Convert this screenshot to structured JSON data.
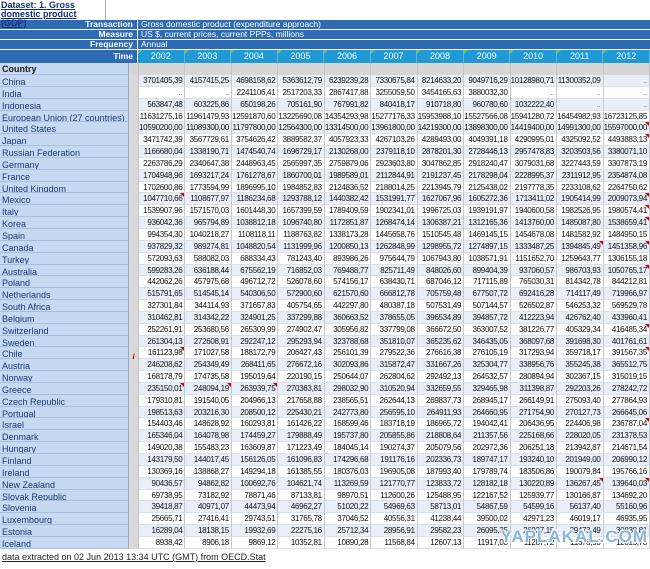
{
  "page": {
    "title": "Dataset: 1. Gross domestic product (GDP)",
    "footer": "data extracted on 02 Jun 2013 13:34 UTC (GMT) from OECD.Stat",
    "watermark": "YAPLAKAL.COM"
  },
  "filters": [
    {
      "label": "Transaction",
      "value": "Gross domestic product (expenditure approach)"
    },
    {
      "label": "Measure",
      "value": "US $, current prices, current PPPs, millions"
    },
    {
      "label": "Frequency",
      "value": "Annual"
    }
  ],
  "time": {
    "label": "Time",
    "years": [
      "2002",
      "2003",
      "2004",
      "2005",
      "2006",
      "2007",
      "2008",
      "2009",
      "2010",
      "2011",
      "2012"
    ]
  },
  "table": {
    "row_dimension": "Country",
    "missing_symbol": "..",
    "rows": [
      {
        "name": "China",
        "info": false,
        "red": [],
        "values": [
          "3701405,39",
          "4157415,25",
          "4698158,62",
          "5363612,79",
          "6239239,28",
          "7330675,84",
          "8214633,20",
          "9049716,29",
          "10128980,71",
          "11300352,09",
          ".."
        ]
      },
      {
        "name": "India",
        "info": false,
        "red": [],
        "values": [
          "..",
          "..",
          "2241106,41",
          "2517203,33",
          "2867417,88",
          "3255059,50",
          "3454165,63",
          "3880032,30",
          "..",
          "..",
          ".."
        ]
      },
      {
        "name": "Indonesia",
        "info": false,
        "red": [],
        "values": [
          "563847,48",
          "603225,86",
          "650198,26",
          "705161,90",
          "767991,82",
          "840418,17",
          "910718,80",
          "960780,60",
          "1032222,40",
          "..",
          ".."
        ]
      },
      {
        "name": "European Union (27 countries)",
        "info": false,
        "red": [],
        "values": [
          "11631275,16",
          "11961479,93",
          "12591870,60",
          "13225690,08",
          "14354293,98",
          "15277176,33",
          "15953988,10",
          "15527566,08",
          "15941280,72",
          "16454982,93",
          "16723125,85"
        ]
      },
      {
        "name": "United States",
        "info": false,
        "red": [
          10
        ],
        "values": [
          "10590200,00",
          "11089300,00",
          "11797800,00",
          "12564300,00",
          "13314500,00",
          "13961800,00",
          "14219300,00",
          "13898300,00",
          "14419400,00",
          "14991300,00",
          "15597000,00"
        ]
      },
      {
        "name": "Japan",
        "info": false,
        "red": [
          10
        ],
        "values": [
          "3471742,39",
          "3567729,61",
          "3754626,42",
          "3889582,37",
          "4057923,33",
          "4267103,26",
          "4289493,00",
          "4049391,18",
          "4290995,01",
          "4325092,52",
          "4493883,13"
        ]
      },
      {
        "name": "Russian Federation",
        "info": false,
        "red": [],
        "values": [
          "1166680,04",
          "1338190,71",
          "1474540,74",
          "1696729,17",
          "2130268,00",
          "2379118,10",
          "2878201,30",
          "2728446,13",
          "2957478,83",
          "3203503,56",
          "3380071,10"
        ]
      },
      {
        "name": "Germany",
        "info": false,
        "red": [],
        "values": [
          "2263786,29",
          "2340647,38",
          "2448963,45",
          "2565997,35",
          "2759879,06",
          "2923603,80",
          "3047862,85",
          "2918240,47",
          "3079031,68",
          "3227443,59",
          "3307873,19"
        ]
      },
      {
        "name": "France",
        "info": false,
        "red": [],
        "values": [
          "1704948,96",
          "1693217,24",
          "1761278,67",
          "1860700,01",
          "1989589,01",
          "2112844,91",
          "2191237,45",
          "2178298,04",
          "2228995,37",
          "2311912,95",
          "2354874,08"
        ]
      },
      {
        "name": "United Kingdom",
        "info": false,
        "red": [],
        "values": [
          "1702600,86",
          "1773594,99",
          "1896995,10",
          "1984852,83",
          "2124836,52",
          "2188014,25",
          "2213945,79",
          "2125438,02",
          "2197778,35",
          "2233108,62",
          "2264750,62"
        ]
      },
      {
        "name": "Mexico",
        "info": false,
        "red": [
          0,
          10
        ],
        "values": [
          "1047710,66",
          "1108677,97",
          "1186234,68",
          "1293788,12",
          "1440382,42",
          "1531991,77",
          "1627067,96",
          "1605272,36",
          "1713411,02",
          "1905414,99",
          "2009073,94"
        ]
      },
      {
        "name": "Italy",
        "info": false,
        "red": [
          10
        ],
        "values": [
          "1539907,96",
          "1571570,03",
          "1601448,30",
          "1657399,59",
          "1789409,59",
          "1902341,01",
          "1996725,03",
          "1939191,97",
          "1940600,58",
          "1982526,95",
          "1980574,41"
        ]
      },
      {
        "name": "Korea",
        "info": false,
        "red": [
          10
        ],
        "values": [
          "936042,36",
          "965794,89",
          "1038812,18",
          "1096740,80",
          "1172851,87",
          "1268474,14",
          "1306387,21",
          "1312165,36",
          "1413760,00",
          "1485087,80",
          "1538659,41"
        ]
      },
      {
        "name": "Spain",
        "info": false,
        "red": [],
        "values": [
          "994354,30",
          "1040218,27",
          "1108118,11",
          "1188763,82",
          "1338173,28",
          "1445658,76",
          "1510545,48",
          "1469145,15",
          "1454678,08",
          "1481582,92",
          "1484950,15"
        ]
      },
      {
        "name": "Canada",
        "info": false,
        "red": [
          9,
          10
        ],
        "values": [
          "937829,32",
          "989274,81",
          "1048820,54",
          "1131999,96",
          "1200850,13",
          "1262848,99",
          "1298955,72",
          "1274897,15",
          "1333487,25",
          "1394845,49",
          "1451358,96"
        ]
      },
      {
        "name": "Turkey",
        "info": false,
        "red": [],
        "values": [
          "572093,63",
          "588082,03",
          "688334,43",
          "781243,40",
          "893986,26",
          "975644,79",
          "1067943,80",
          "1038571,91",
          "1151652,70",
          "1259643,77",
          "1306155,18"
        ]
      },
      {
        "name": "Australia",
        "info": false,
        "red": [
          10
        ],
        "values": [
          "599283,26",
          "636188,44",
          "675562,19",
          "716852,03",
          "769488,77",
          "825711,49",
          "848026,60",
          "899404,39",
          "937060,57",
          "986703,93",
          "1050765,17"
        ]
      },
      {
        "name": "Poland",
        "info": false,
        "red": [],
        "values": [
          "442062,26",
          "457975,68",
          "496712,72",
          "526078,60",
          "574156,17",
          "638430,71",
          "687046,12",
          "717115,89",
          "765030,31",
          "814342,78",
          "844212,81"
        ]
      },
      {
        "name": "Netherlands",
        "info": false,
        "red": [],
        "values": [
          "515791,65",
          "514545,14",
          "540306,50",
          "572900,60",
          "621570,60",
          "666812,78",
          "705759,48",
          "677507,72",
          "692416,28",
          "714117,49",
          "719966,97"
        ]
      },
      {
        "name": "South Africa",
        "info": false,
        "red": [],
        "values": [
          "327301,84",
          "344114,93",
          "371657,83",
          "405754,65",
          "442297,80",
          "480387,18",
          "507531,49",
          "507144,57",
          "526502,87",
          "546253,32",
          "569529,78"
        ]
      },
      {
        "name": "Belgium",
        "info": false,
        "red": [],
        "values": [
          "310462,81",
          "314342,22",
          "324901,25",
          "337299,88",
          "360663,52",
          "378655,05",
          "396534,89",
          "394857,72",
          "412223,94",
          "426762,40",
          "433960,41"
        ]
      },
      {
        "name": "Switzerland",
        "info": false,
        "red": [
          10
        ],
        "values": [
          "252261,91",
          "253680,56",
          "265309,99",
          "274902,47",
          "305956,82",
          "337799,08",
          "366672,50",
          "363007,52",
          "381226,77",
          "405329,34",
          "416485,34"
        ]
      },
      {
        "name": "Sweden",
        "info": false,
        "red": [],
        "values": [
          "261304,13",
          "272608,91",
          "292247,12",
          "295293,94",
          "323788,68",
          "351810,07",
          "365235,62",
          "346435,05",
          "368097,68",
          "391698,30",
          "401761,61"
        ]
      },
      {
        "name": "Chile",
        "info": true,
        "red": [
          0,
          10
        ],
        "values": [
          "161123,98",
          "171027,58",
          "188172,79",
          "206427,43",
          "256101,39",
          "279522,36",
          "276616,38",
          "276105,19",
          "317293,94",
          "359718,17",
          "391567,35"
        ]
      },
      {
        "name": "Austria",
        "info": false,
        "red": [],
        "values": [
          "246208,62",
          "254349,49",
          "268411,65",
          "276672,16",
          "302093,86",
          "315872,47",
          "331667,26",
          "325304,77",
          "338956,76",
          "355245,38",
          "365512,75"
        ]
      },
      {
        "name": "Norway",
        "info": false,
        "red": [],
        "values": [
          "168178,79",
          "174735,58",
          "195019,64",
          "220190,15",
          "250644,07",
          "262804,62",
          "292492,13",
          "264532,57",
          "280894,94",
          "302367,15",
          "315019,15"
        ]
      },
      {
        "name": "Greece",
        "info": false,
        "red": [
          0,
          1,
          2
        ],
        "values": [
          "235150,01",
          "248094,19",
          "263939,75",
          "270363,81",
          "298032,90",
          "310520,94",
          "332659,55",
          "329465,98",
          "311398,87",
          "292203,26",
          "278242,72"
        ]
      },
      {
        "name": "Czech Republic",
        "info": false,
        "red": [],
        "values": [
          "179310,81",
          "191540,05",
          "204966,13",
          "217658,88",
          "238565,51",
          "262644,13",
          "269837,73",
          "268945,17",
          "266149,91",
          "275093,40",
          "277864,93"
        ]
      },
      {
        "name": "Portugal",
        "info": false,
        "red": [],
        "values": [
          "198513,63",
          "203216,30",
          "208500,12",
          "225430,21",
          "242773,80",
          "256595,10",
          "264911,93",
          "264660,95",
          "271754,90",
          "270127,73",
          "266645,06"
        ]
      },
      {
        "name": "Israel",
        "info": false,
        "red": [
          10
        ],
        "values": [
          "154403,46",
          "148628,92",
          "160293,81",
          "161426,22",
          "168599,46",
          "183718,19",
          "186965,72",
          "194042,41",
          "206436,95",
          "224406,98",
          "236787,04"
        ]
      },
      {
        "name": "Denmark",
        "info": false,
        "red": [],
        "values": [
          "165346,04",
          "164078,98",
          "174459,27",
          "179888,49",
          "195737,80",
          "205855,86",
          "218808,64",
          "211357,56",
          "225168,66",
          "228020,05",
          "231378,53"
        ]
      },
      {
        "name": "Hungary",
        "info": false,
        "red": [],
        "values": [
          "149020,38",
          "155483,23",
          "163609,87",
          "171223,49",
          "184045,14",
          "190274,37",
          "205079,56",
          "202972,36",
          "206251,18",
          "213942,87",
          "214671,54"
        ]
      },
      {
        "name": "Finland",
        "info": false,
        "red": [],
        "values": [
          "143179,50",
          "144017,45",
          "156126,05",
          "161096,83",
          "174296,68",
          "191176,16",
          "202336,73",
          "189747,17",
          "193240,10",
          "201949,00",
          "206990,12"
        ]
      },
      {
        "name": "Ireland",
        "info": false,
        "red": [],
        "values": [
          "130369,16",
          "138868,27",
          "149294,18",
          "161385,55",
          "180376,03",
          "196905,08",
          "187993,40",
          "179789,74",
          "183506,86",
          "190079,84",
          "195766,16"
        ]
      },
      {
        "name": "New Zealand",
        "info": false,
        "red": [
          9,
          10
        ],
        "values": [
          "90436,57",
          "94862,82",
          "100692,76",
          "104621,74",
          "113269,59",
          "121770,77",
          "123833,72",
          "128182,18",
          "130220,89",
          "136267,45",
          "139640,03"
        ]
      },
      {
        "name": "Slovak Republic",
        "info": false,
        "red": [],
        "values": [
          "69738,95",
          "73182,92",
          "78871,46",
          "87133,81",
          "98970,51",
          "112600,26",
          "125488,95",
          "122167,52",
          "125939,77",
          "130166,87",
          "134692,20"
        ]
      },
      {
        "name": "Slovenia",
        "info": false,
        "red": [],
        "values": [
          "39418,87",
          "40971,07",
          "44473,94",
          "46962,27",
          "51020,22",
          "54969,63",
          "58713,01",
          "54867,59",
          "54599,16",
          "56137,40",
          "55160,96"
        ]
      },
      {
        "name": "Luxembourg",
        "info": false,
        "red": [],
        "values": [
          "25665,71",
          "27416,41",
          "29743,51",
          "31765,78",
          "37046,52",
          "40556,31",
          "41238,44",
          "39500,02",
          "42971,23",
          "46019,17",
          "46935,95"
        ]
      },
      {
        "name": "Estonia",
        "info": false,
        "red": [],
        "values": [
          "16289,04",
          "18138,15",
          "19932,69",
          "22275,16",
          "25712,34",
          "28956,91",
          "29582,23",
          "26095,35",
          "26927,15",
          "29473,49",
          "30838,81"
        ]
      },
      {
        "name": "Iceland",
        "info": false,
        "red": [],
        "values": [
          "8938,42",
          "8906,18",
          "9869,12",
          "10352,81",
          "10890,28",
          "11568,84",
          "12607,13",
          "11917,03",
          "11287,72",
          "11678,90",
          "12015,78"
        ]
      }
    ]
  },
  "colors": {
    "header_blue": "#2d6cb4",
    "year_blue": "#1f9ad7",
    "country_col_blue": "#c6d9f2",
    "row_stripe": "#e9eff8",
    "flag_red": "#cc0000",
    "corner_green": "#7cc14c"
  }
}
